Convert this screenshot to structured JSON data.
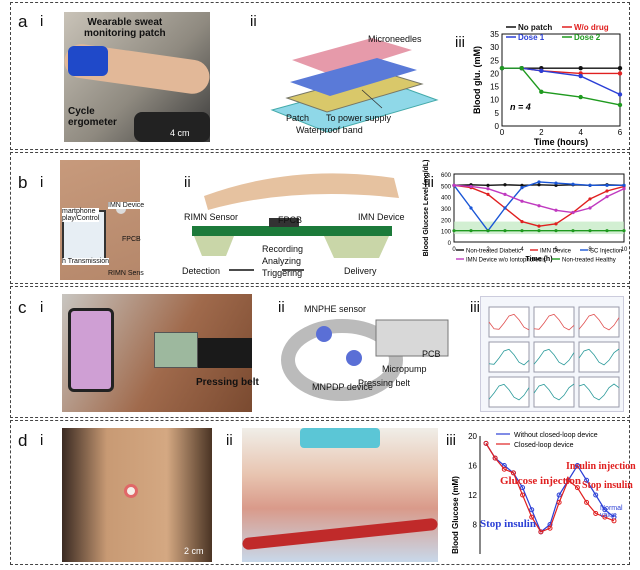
{
  "panels": {
    "a": {
      "letter": "a",
      "i": {
        "roman": "i",
        "patch_label": "Wearable sweat\nmonitoring patch",
        "ergometer_label": "Cycle\nergometer",
        "scale": "4 cm"
      },
      "ii": {
        "roman": "ii",
        "microneedles": "Microneedles",
        "patch": "Patch",
        "power": "To power supply",
        "band": "Waterproof band"
      },
      "iii": {
        "roman": "iii",
        "n_label": "n = 4"
      }
    },
    "b": {
      "letter": "b",
      "i": {
        "roman": "i",
        "imn_device": "IMN Device",
        "smartphone": "martphone\nplay/Control",
        "fpcb": "FPCB",
        "transmission": "h Transmission",
        "sensor": "RIMN Sens"
      },
      "ii": {
        "roman": "ii",
        "rimn_sensor": "RIMN Sensor",
        "imn_device": "IMN Device",
        "fpcb": "FPCB",
        "detection": "Detection",
        "delivery": "Delivery",
        "steps": [
          "Recording",
          "Analyzing",
          "Triggering"
        ]
      },
      "iii": {
        "roman": "iii"
      }
    },
    "c": {
      "letter": "c",
      "i": {
        "roman": "i",
        "belt": "Pressing belt"
      },
      "ii": {
        "roman": "ii",
        "mnphe": "MNPHE sensor",
        "pcb": "PCB",
        "micropump": "Micropump",
        "mnpdp": "MNPDP device",
        "belt": "Pressing belt"
      },
      "iii": {
        "roman": "iii"
      }
    },
    "d": {
      "letter": "d",
      "i": {
        "roman": "i",
        "scale": "2 cm"
      },
      "ii": {
        "roman": "ii"
      },
      "iii": {
        "roman": "iii",
        "glucose_injection": "Glucose injection",
        "insulin_injection": "Insulin injection",
        "stop_insulin_left": "Stop insulin",
        "stop_insulin_right": "Stop insulin",
        "normal_value": "Normal\nvalue"
      }
    }
  },
  "colors": {
    "black": "#111111",
    "red": "#e02020",
    "blue": "#2b3fd6",
    "green": "#1f9a1f",
    "magenta": "#c03ac0",
    "cyan_blue": "#1a56d6"
  },
  "chart_data": [
    {
      "id": "a-iii",
      "type": "line",
      "xlabel": "Time (hours)",
      "ylabel": "Blood glu. (mM)",
      "xlim": [
        0,
        6
      ],
      "ylim": [
        0,
        35
      ],
      "xticks": [
        0,
        2,
        4,
        6
      ],
      "yticks": [
        0,
        5,
        10,
        15,
        20,
        25,
        30,
        35
      ],
      "x": [
        0,
        1,
        2,
        4,
        6
      ],
      "series": [
        {
          "name": "No patch",
          "color": "#111111",
          "values": [
            22,
            22,
            22,
            22,
            22
          ]
        },
        {
          "name": "W/o drug",
          "color": "#e02020",
          "values": [
            22,
            22,
            21,
            20,
            20
          ]
        },
        {
          "name": "Dose 1",
          "color": "#2b3fd6",
          "values": [
            22,
            22,
            21,
            19,
            12
          ]
        },
        {
          "name": "Dose 2",
          "color": "#1f9a1f",
          "values": [
            22,
            22,
            13,
            11,
            8
          ]
        }
      ],
      "annotation": "n = 4",
      "legend": "top"
    },
    {
      "id": "b-iii",
      "type": "line",
      "xlabel": "Time (h)",
      "ylabel": "Blood Glucose\nLevel (mg/dL)",
      "xlim": [
        0,
        10
      ],
      "ylim": [
        0,
        600
      ],
      "xticks": [
        0,
        2,
        4,
        6,
        8,
        10
      ],
      "yticks": [
        0,
        100,
        200,
        300,
        400,
        500,
        600
      ],
      "normal_band": [
        70,
        180
      ],
      "x": [
        0,
        1,
        2,
        3,
        4,
        5,
        6,
        7,
        8,
        9,
        10
      ],
      "series": [
        {
          "name": "Non-treated Diabetic",
          "color": "#111111",
          "values": [
            500,
            505,
            500,
            505,
            500,
            505,
            500,
            505,
            500,
            505,
            500
          ]
        },
        {
          "name": "IMN Device",
          "color": "#e02020",
          "values": [
            500,
            480,
            420,
            300,
            180,
            140,
            160,
            260,
            380,
            450,
            490
          ]
        },
        {
          "name": "SC Injection",
          "color": "#1a56d6",
          "values": [
            500,
            300,
            100,
            300,
            480,
            530,
            520,
            510,
            500,
            500,
            500
          ]
        },
        {
          "name": "IMN Device w/o Iontophoresis",
          "color": "#c03ac0",
          "values": [
            500,
            490,
            470,
            420,
            360,
            320,
            280,
            260,
            300,
            400,
            470
          ]
        },
        {
          "name": "Non-treated Healthy",
          "color": "#1f9a1f",
          "values": [
            100,
            100,
            100,
            100,
            100,
            100,
            100,
            100,
            100,
            100,
            100
          ]
        }
      ],
      "legend": "bottom"
    },
    {
      "id": "d-iii",
      "type": "line",
      "ylabel": "Blood Glucose (mM)",
      "ylim": [
        0,
        20
      ],
      "yticks": [
        8,
        12,
        16,
        20
      ],
      "series": [
        {
          "name": "Without closed-loop device",
          "color": "#2b3fd6",
          "values": [
            19,
            17,
            16,
            15,
            13,
            10,
            7,
            8,
            12,
            14,
            16,
            14,
            12,
            10,
            9
          ]
        },
        {
          "name": "Closed-loop device",
          "color": "#e02020",
          "values": [
            19,
            17,
            15.5,
            15,
            12,
            9,
            7,
            7.5,
            11,
            14,
            13,
            11,
            9.5,
            9,
            8.5
          ]
        }
      ],
      "legend": "top"
    }
  ]
}
